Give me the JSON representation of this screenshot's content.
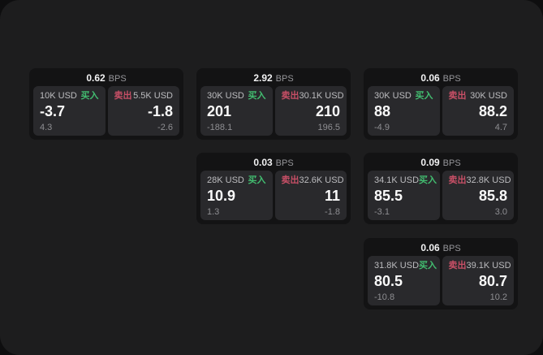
{
  "labels": {
    "bps": "BPS",
    "buy": "买入",
    "sell": "卖出"
  },
  "colors": {
    "buy_green": "#42bd70",
    "sell_red": "#c74f66",
    "panel_bg": "#1d1d1e",
    "card_bg": "#131314",
    "cell_bg": "#29292c"
  },
  "cards": [
    {
      "bps": "0.62",
      "buy": {
        "size": "10K USD",
        "price": "-3.7",
        "delta": "4.3"
      },
      "sell": {
        "size": "5.5K USD",
        "price": "-1.8",
        "delta": "-2.6"
      }
    },
    {
      "bps": "2.92",
      "buy": {
        "size": "30K USD",
        "price": "201",
        "delta": "-188.1"
      },
      "sell": {
        "size": "30.1K USD",
        "price": "210",
        "delta": "196.5"
      }
    },
    {
      "bps": "0.06",
      "buy": {
        "size": "30K USD",
        "price": "88",
        "delta": "-4.9"
      },
      "sell": {
        "size": "30K USD",
        "price": "88.2",
        "delta": "4.7"
      }
    },
    {
      "bps": "0.03",
      "buy": {
        "size": "28K USD",
        "price": "10.9",
        "delta": "1.3"
      },
      "sell": {
        "size": "32.6K USD",
        "price": "11",
        "delta": "-1.8"
      }
    },
    {
      "bps": "0.09",
      "buy": {
        "size": "34.1K USD",
        "price": "85.5",
        "delta": "-3.1"
      },
      "sell": {
        "size": "32.8K USD",
        "price": "85.8",
        "delta": "3.0"
      }
    },
    {
      "bps": "0.06",
      "buy": {
        "size": "31.8K USD",
        "price": "80.5",
        "delta": "-10.8"
      },
      "sell": {
        "size": "39.1K USD",
        "price": "80.7",
        "delta": "10.2"
      }
    }
  ]
}
